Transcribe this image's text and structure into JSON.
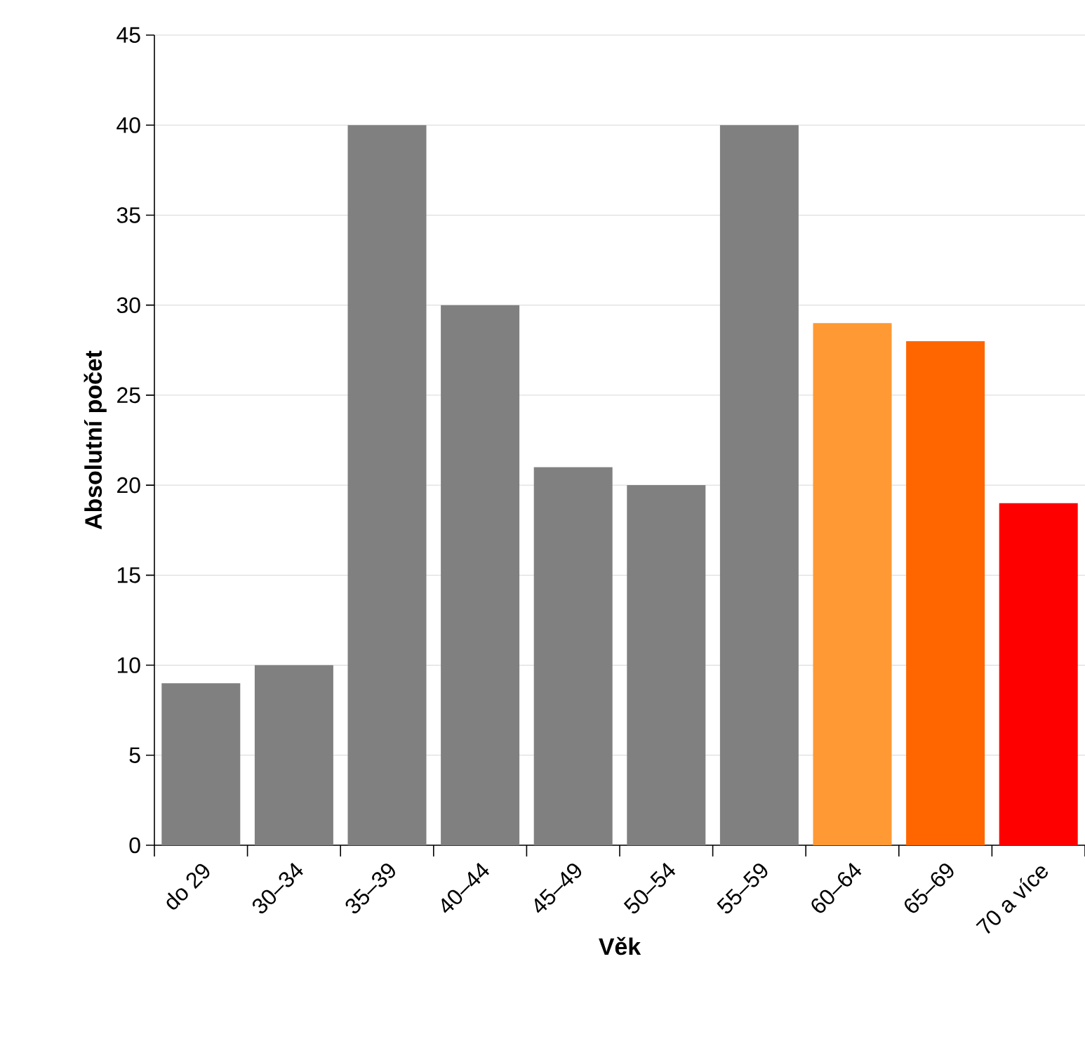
{
  "chart_data": {
    "type": "bar",
    "xlabel": "Věk",
    "ylabel": "Absolutní počet",
    "categories": [
      "do 29",
      "30–34",
      "35–39",
      "40–44",
      "45–49",
      "50–54",
      "55–59",
      "60–64",
      "65–69",
      "70 a více"
    ],
    "values": [
      9,
      10,
      40,
      30,
      21,
      20,
      40,
      29,
      28,
      19
    ],
    "colors": [
      "#808080",
      "#808080",
      "#808080",
      "#808080",
      "#808080",
      "#808080",
      "#808080",
      "#ff9933",
      "#ff6600",
      "#ff0000"
    ],
    "ylim": [
      0,
      45
    ],
    "yticks": [
      0,
      5,
      10,
      15,
      20,
      25,
      30,
      35,
      40,
      45
    ],
    "grid": "y"
  }
}
